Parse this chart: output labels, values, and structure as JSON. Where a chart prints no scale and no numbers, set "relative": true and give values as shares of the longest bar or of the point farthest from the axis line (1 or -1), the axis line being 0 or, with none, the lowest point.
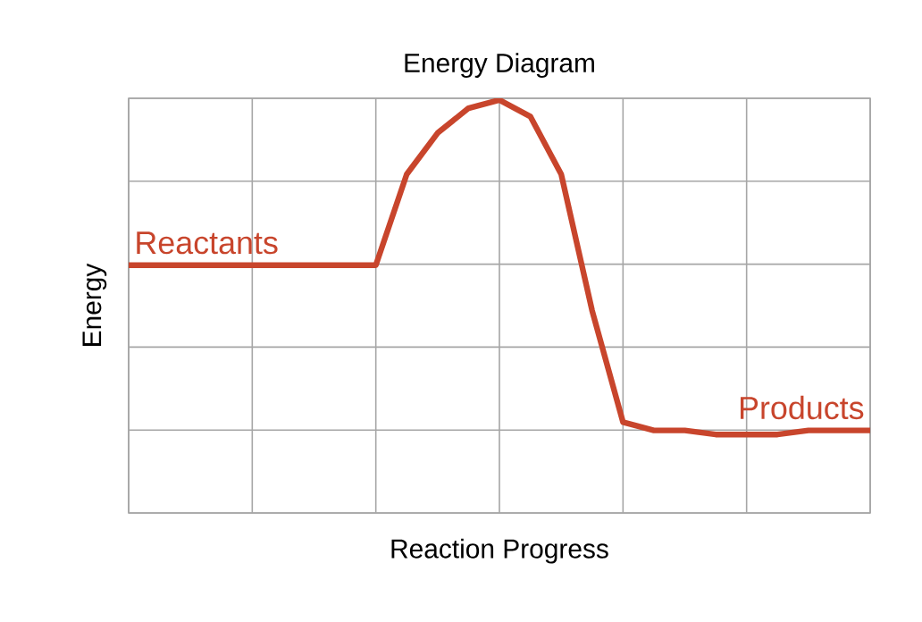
{
  "chart_data": {
    "type": "line",
    "title": "Energy Diagram",
    "xlabel": "Reaction Progress",
    "ylabel": "Energy",
    "relative": true,
    "grid": true,
    "color": "#c8452c",
    "categories": [
      null,
      null,
      null,
      null,
      null,
      null,
      null,
      null,
      null,
      null,
      null,
      null,
      null,
      null,
      null,
      null,
      null,
      null,
      null,
      null,
      null,
      null,
      null,
      null,
      null
    ],
    "values": [
      0.6,
      0.6,
      0.6,
      0.6,
      0.6,
      0.6,
      0.6,
      0.6,
      0.6,
      0.82,
      0.92,
      0.98,
      1,
      0.96,
      0.82,
      0.49,
      0.22,
      0.2,
      0.2,
      0.19,
      0.19,
      0.19,
      0.2,
      0.2,
      0.2
    ],
    "annotations": [
      "Reactants",
      "Products"
    ]
  }
}
